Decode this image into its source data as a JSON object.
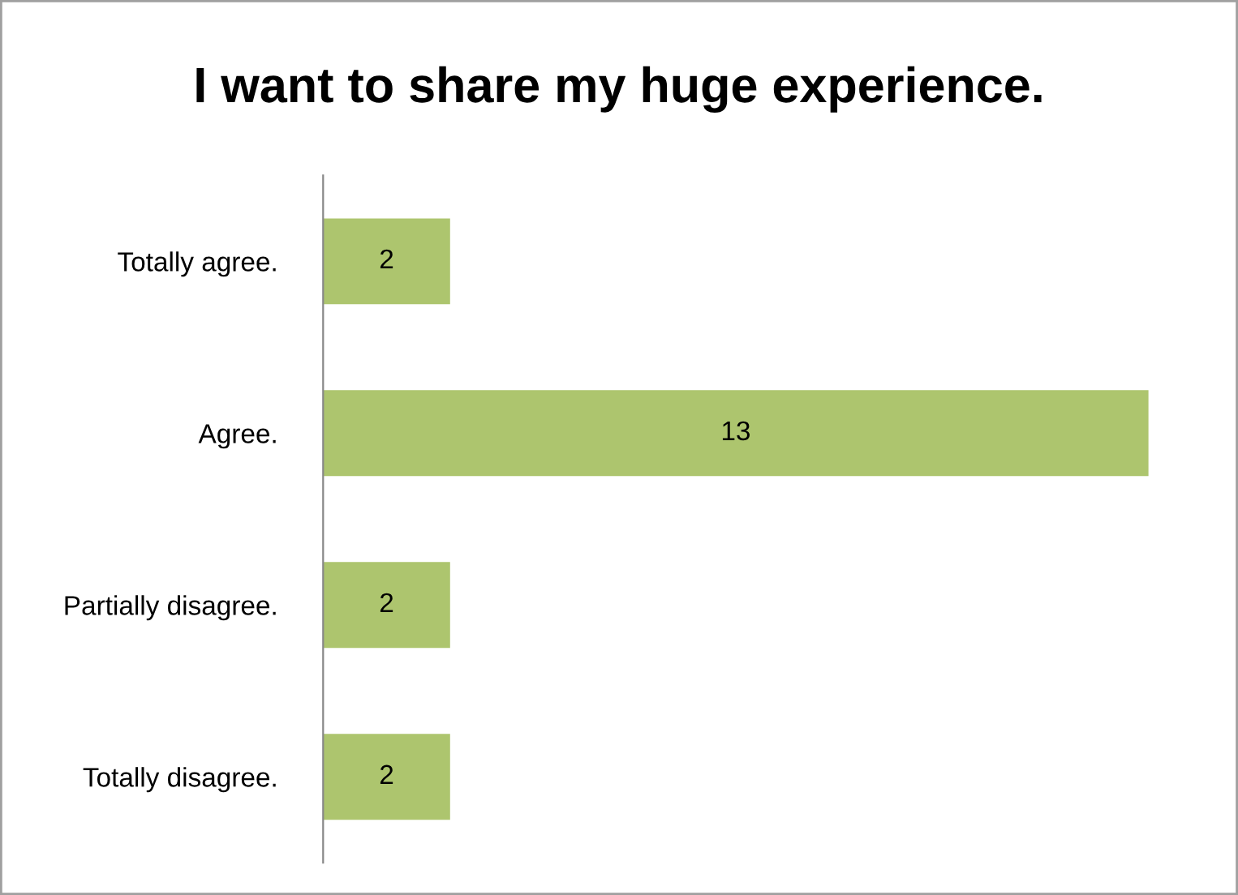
{
  "chart_data": {
    "type": "bar",
    "orientation": "horizontal",
    "title": "I want to share my huge experience.",
    "categories": [
      "Totally agree.",
      "Agree.",
      "Partially disagree.",
      "Totally disagree."
    ],
    "values": [
      2,
      13,
      2,
      2
    ],
    "color": "#adc56e",
    "data_labels": true,
    "grid": false,
    "legend": false
  }
}
